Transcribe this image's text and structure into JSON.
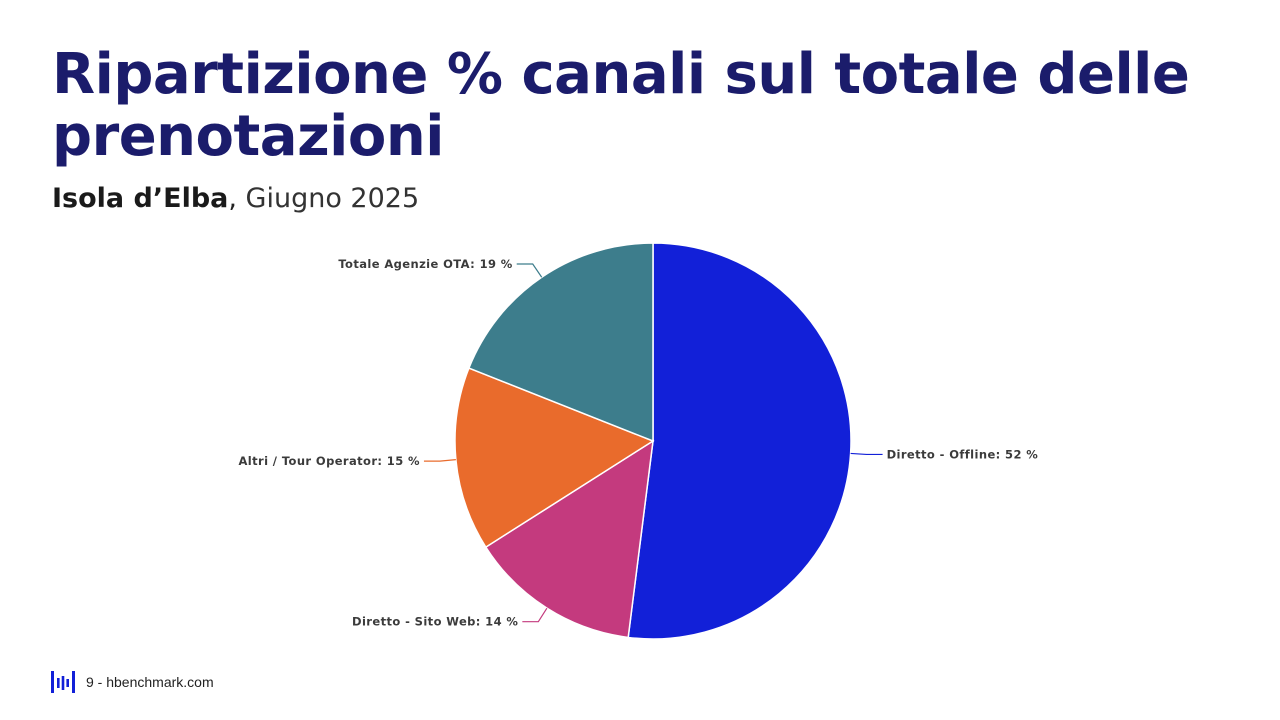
{
  "title": "Ripartizione % canali sul totale delle prenotazioni",
  "subtitle": {
    "place": "Isola d’Elba",
    "separator": ", ",
    "date": "Giugno 2025"
  },
  "chart_data": {
    "type": "pie",
    "slices": [
      {
        "label": "Diretto - Offline: 52 %",
        "value": 52,
        "color": "#1220d8"
      },
      {
        "label": "Diretto - Sito Web: 14 %",
        "value": 14,
        "color": "#c43a7e"
      },
      {
        "label": "Altri / Tour Operator: 15 %",
        "value": 15,
        "color": "#e96b2c"
      },
      {
        "label": "Totale Agenzie OTA: 19 %",
        "value": 19,
        "color": "#3d7d8c"
      }
    ]
  },
  "footer": {
    "page_text": "9 - hbenchmark.com",
    "logo_color": "#1220d8"
  }
}
